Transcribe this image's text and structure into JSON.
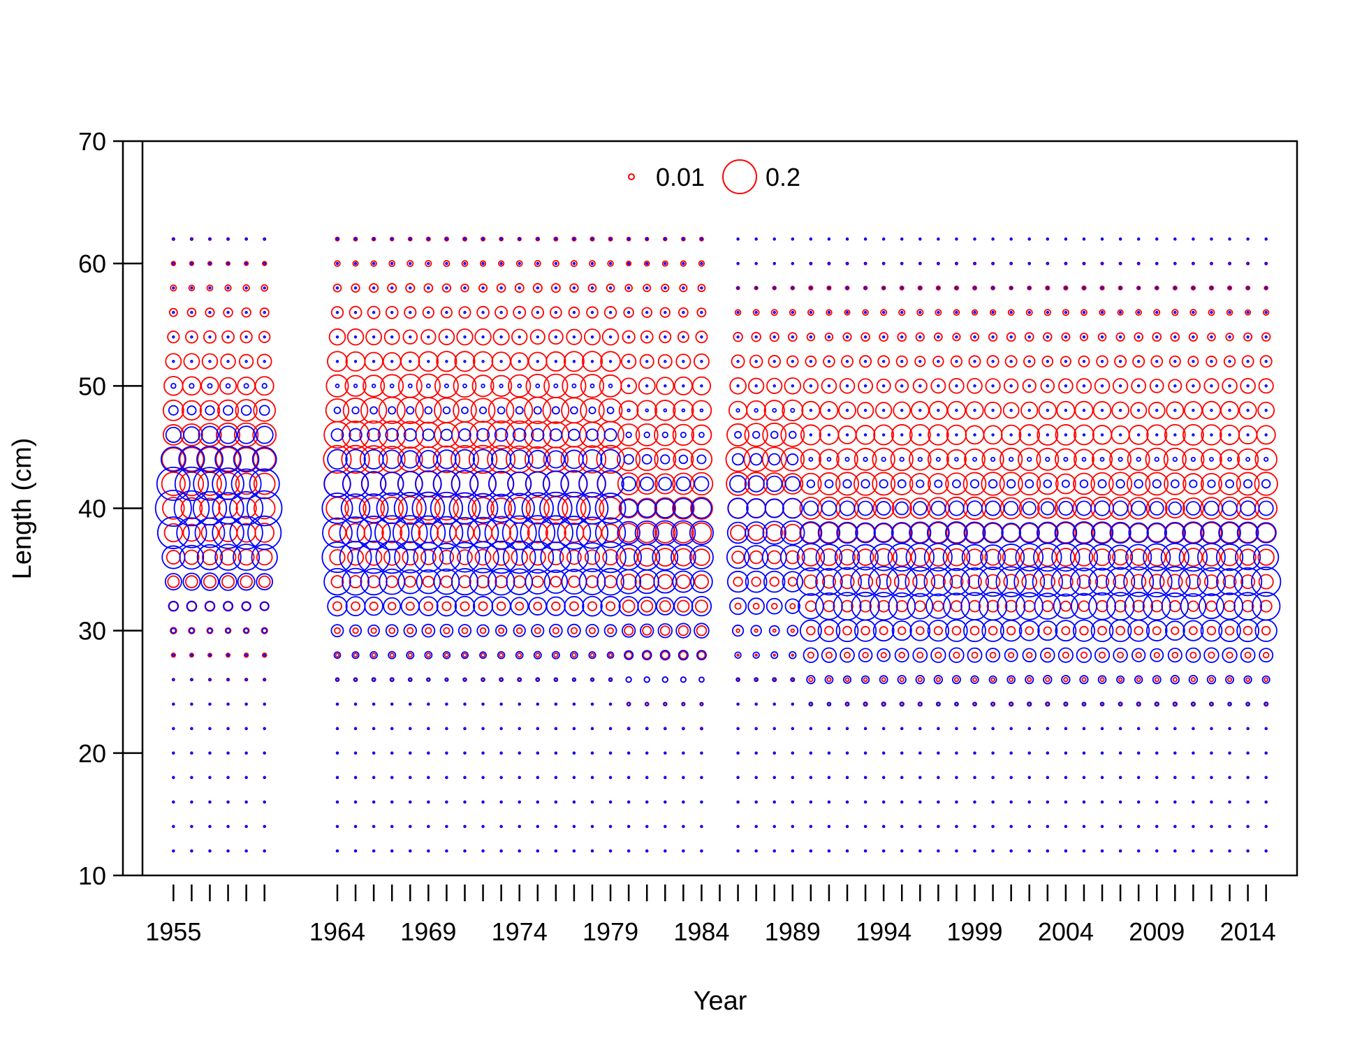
{
  "chart_data": {
    "type": "scatter",
    "title": "",
    "xlabel": "Year",
    "ylabel": "Length (cm)",
    "xlim": [
      1953.3,
      2016.7
    ],
    "ylim": [
      10,
      70
    ],
    "x_tick_labels": [
      "1955",
      "1964",
      "1969",
      "1974",
      "1979",
      "1984",
      "1989",
      "1994",
      "1999",
      "2004",
      "2009",
      "2014"
    ],
    "x_tick_values": [
      1955,
      1964,
      1969,
      1974,
      1979,
      1984,
      1989,
      1994,
      1999,
      2004,
      2009,
      2014
    ],
    "x_minor_ticks": [
      1955,
      1956,
      1957,
      1958,
      1959,
      1960,
      1964,
      1965,
      1966,
      1967,
      1968,
      1969,
      1970,
      1971,
      1972,
      1973,
      1974,
      1975,
      1976,
      1977,
      1978,
      1979,
      1980,
      1981,
      1982,
      1983,
      1984,
      1985,
      1986,
      1987,
      1988,
      1989,
      1990,
      1991,
      1992,
      1993,
      1994,
      1995,
      1996,
      1997,
      1998,
      1999,
      2000,
      2001,
      2002,
      2003,
      2004,
      2005,
      2006,
      2007,
      2008,
      2009,
      2010,
      2011,
      2012,
      2013,
      2014,
      2015
    ],
    "y_ticks": [
      10,
      20,
      30,
      40,
      50,
      60,
      70
    ],
    "years": [
      1955,
      1956,
      1957,
      1958,
      1959,
      1960,
      1964,
      1965,
      1966,
      1967,
      1968,
      1969,
      1970,
      1971,
      1972,
      1973,
      1974,
      1975,
      1976,
      1977,
      1978,
      1979,
      1980,
      1981,
      1982,
      1983,
      1984,
      1986,
      1987,
      1988,
      1989,
      1990,
      1991,
      1992,
      1993,
      1994,
      1995,
      1996,
      1997,
      1998,
      1999,
      2000,
      2001,
      2002,
      2003,
      2004,
      2005,
      2006,
      2007,
      2008,
      2009,
      2010,
      2011,
      2012,
      2013,
      2014,
      2015
    ],
    "length_bins": [
      12,
      14,
      16,
      18,
      20,
      22,
      24,
      26,
      28,
      30,
      32,
      34,
      36,
      38,
      40,
      42,
      44,
      46,
      48,
      50,
      52,
      54,
      56,
      58,
      60,
      62
    ],
    "legend": {
      "placement": "top-center",
      "entries": [
        {
          "label": "0.01",
          "value": 0.01
        },
        {
          "label": "0.2",
          "value": 0.2
        }
      ]
    },
    "series": [
      {
        "color": "#ff0000",
        "description_key": "red"
      },
      {
        "color": "#0000ff",
        "description_key": "blue"
      }
    ],
    "proportion_profiles": {
      "red": [
        {
          "from": 1955,
          "to": 1960,
          "mean": 44,
          "sd": 6,
          "peak": 0.09
        },
        {
          "from": 1964,
          "to": 1979,
          "mean": 45,
          "sd": 6,
          "peak": 0.12
        },
        {
          "from": 1980,
          "to": 1984,
          "mean": 43,
          "sd": 7,
          "peak": 0.08
        },
        {
          "from": 1986,
          "to": 1989,
          "mean": 44,
          "sd": 5,
          "peak": 0.09
        },
        {
          "from": 1990,
          "to": 2015,
          "mean": 42,
          "sd": 6,
          "peak": 0.08
        }
      ],
      "blue": [
        {
          "from": 1955,
          "to": 1960,
          "mean": 40,
          "sd": 3.5,
          "peak": 0.2
        },
        {
          "from": 1964,
          "to": 1979,
          "mean": 38,
          "sd": 4,
          "peak": 0.18
        },
        {
          "from": 1980,
          "to": 1984,
          "mean": 36,
          "sd": 4,
          "peak": 0.1
        },
        {
          "from": 1986,
          "to": 1989,
          "mean": 37,
          "sd": 4,
          "peak": 0.09
        },
        {
          "from": 1990,
          "to": 2015,
          "mean": 34,
          "sd": 3.5,
          "peak": 0.14
        }
      ]
    }
  }
}
